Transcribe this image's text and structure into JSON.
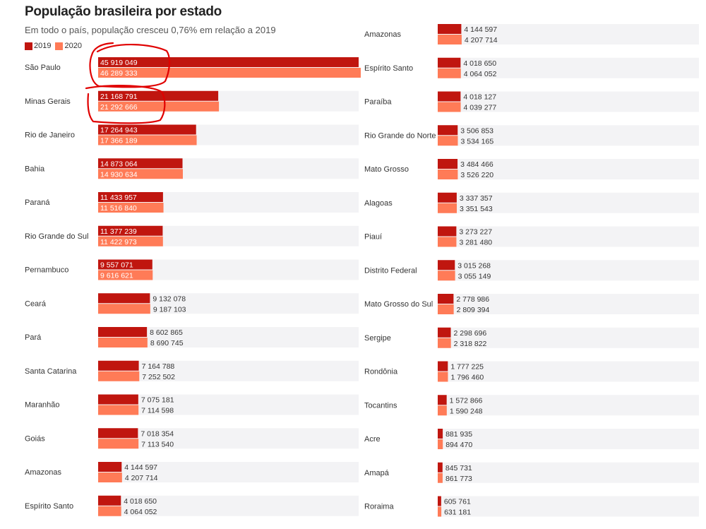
{
  "header": {
    "title": "População brasileira por estado",
    "subtitle": "Em todo o país, população cresceu 0,76% em relação a 2019"
  },
  "colors": {
    "y2019": "#c0160f",
    "y2020": "#ff7b57",
    "track": "#f3f3f5",
    "annotation": "#e00000"
  },
  "chart_data": {
    "type": "bar",
    "orientation": "horizontal",
    "title": "População brasileira por estado",
    "subtitle": "Em todo o país, população cresceu 0,76% em relação a 2019",
    "legend": {
      "placement": "top-left",
      "entries": [
        "2019",
        "2020"
      ]
    },
    "series_names": [
      "2019",
      "2020"
    ],
    "panels": [
      {
        "name": "left",
        "xlim": [
          0,
          45919049
        ],
        "rows": [
          {
            "label": "São Paulo",
            "values": [
              45919049,
              46289333
            ],
            "texts": [
              "45 919 049",
              "46 289 333"
            ]
          },
          {
            "label": "Minas Gerais",
            "values": [
              21168791,
              21292666
            ],
            "texts": [
              "21 168 791",
              "21 292 666"
            ]
          },
          {
            "label": "Rio de Janeiro",
            "values": [
              17264943,
              17366189
            ],
            "texts": [
              "17 264 943",
              "17 366 189"
            ]
          },
          {
            "label": "Bahia",
            "values": [
              14873064,
              14930634
            ],
            "texts": [
              "14 873 064",
              "14 930 634"
            ]
          },
          {
            "label": "Paraná",
            "values": [
              11433957,
              11516840
            ],
            "texts": [
              "11 433 957",
              "11 516 840"
            ]
          },
          {
            "label": "Rio Grande do Sul",
            "values": [
              11377239,
              11422973
            ],
            "texts": [
              "11 377 239",
              "11 422 973"
            ]
          },
          {
            "label": "Pernambuco",
            "values": [
              9557071,
              9616621
            ],
            "texts": [
              "9 557 071",
              "9 616 621"
            ]
          },
          {
            "label": "Ceará",
            "values": [
              9132078,
              9187103
            ],
            "texts": [
              "9 132 078",
              "9 187 103"
            ]
          },
          {
            "label": "Pará",
            "values": [
              8602865,
              8690745
            ],
            "texts": [
              "8 602 865",
              "8 690 745"
            ]
          },
          {
            "label": "Santa Catarina",
            "values": [
              7164788,
              7252502
            ],
            "texts": [
              "7 164 788",
              "7 252 502"
            ]
          },
          {
            "label": "Maranhão",
            "values": [
              7075181,
              7114598
            ],
            "texts": [
              "7 075 181",
              "7 114 598"
            ]
          },
          {
            "label": "Goiás",
            "values": [
              7018354,
              7113540
            ],
            "texts": [
              "7 018 354",
              "7 113 540"
            ]
          },
          {
            "label": "Amazonas",
            "values": [
              4144597,
              4207714
            ],
            "texts": [
              "4 144 597",
              "4 207 714"
            ]
          },
          {
            "label": "Espírito Santo",
            "values": [
              4018650,
              4064052
            ],
            "texts": [
              "4 018 650",
              "4 064 052"
            ]
          }
        ]
      },
      {
        "name": "right",
        "xlim": [
          0,
          45919049
        ],
        "rows": [
          {
            "label": "Amazonas",
            "values": [
              4144597,
              4207714
            ],
            "texts": [
              "4 144 597",
              "4 207 714"
            ]
          },
          {
            "label": "Espírito Santo",
            "values": [
              4018650,
              4064052
            ],
            "texts": [
              "4 018 650",
              "4 064 052"
            ]
          },
          {
            "label": "Paraíba",
            "values": [
              4018127,
              4039277
            ],
            "texts": [
              "4 018 127",
              "4 039 277"
            ]
          },
          {
            "label": "Rio Grande do Norte",
            "values": [
              3506853,
              3534165
            ],
            "texts": [
              "3 506 853",
              "3 534 165"
            ]
          },
          {
            "label": "Mato Grosso",
            "values": [
              3484466,
              3526220
            ],
            "texts": [
              "3 484 466",
              "3 526 220"
            ]
          },
          {
            "label": "Alagoas",
            "values": [
              3337357,
              3351543
            ],
            "texts": [
              "3 337 357",
              "3 351 543"
            ]
          },
          {
            "label": "Piauí",
            "values": [
              3273227,
              3281480
            ],
            "texts": [
              "3 273 227",
              "3 281 480"
            ]
          },
          {
            "label": "Distrito Federal",
            "values": [
              3015268,
              3055149
            ],
            "texts": [
              "3 015 268",
              "3 055 149"
            ]
          },
          {
            "label": "Mato Grosso do Sul",
            "values": [
              2778986,
              2809394
            ],
            "texts": [
              "2 778 986",
              "2 809 394"
            ]
          },
          {
            "label": "Sergipe",
            "values": [
              2298696,
              2318822
            ],
            "texts": [
              "2 298 696",
              "2 318 822"
            ]
          },
          {
            "label": "Rondônia",
            "values": [
              1777225,
              1796460
            ],
            "texts": [
              "1 777 225",
              "1 796 460"
            ]
          },
          {
            "label": "Tocantins",
            "values": [
              1572866,
              1590248
            ],
            "texts": [
              "1 572 866",
              "1 590 248"
            ]
          },
          {
            "label": "Acre",
            "values": [
              881935,
              894470
            ],
            "texts": [
              "881 935",
              "894 470"
            ]
          },
          {
            "label": "Amapá",
            "values": [
              845731,
              861773
            ],
            "texts": [
              "845 731",
              "861 773"
            ]
          },
          {
            "label": "Roraima",
            "values": [
              605761,
              631181
            ],
            "texts": [
              "605 761",
              "631 181"
            ]
          }
        ]
      }
    ],
    "annotations": [
      {
        "type": "hand-drawn-circle",
        "target_panel": "left",
        "target_row": "São Paulo"
      },
      {
        "type": "hand-drawn-circle",
        "target_panel": "left",
        "target_row": "Minas Gerais"
      }
    ]
  }
}
